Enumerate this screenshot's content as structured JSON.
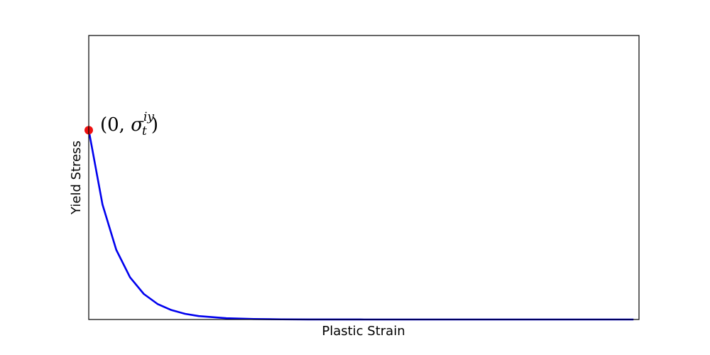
{
  "chart_data": {
    "type": "line",
    "title": "",
    "xlabel": "Plastic Strain",
    "ylabel": "Yield Stress",
    "xlim": [
      0,
      10
    ],
    "ylim": [
      0,
      1.5
    ],
    "xticks": [],
    "yticks": [],
    "grid": false,
    "series": [
      {
        "color": "#0000ee",
        "x": [
          0,
          0.25,
          0.5,
          0.75,
          1,
          1.25,
          1.5,
          1.75,
          2,
          2.5,
          3,
          3.5,
          4,
          5,
          6,
          7,
          8,
          9,
          9.9
        ],
        "y": [
          1.0,
          0.607,
          0.368,
          0.223,
          0.135,
          0.082,
          0.05,
          0.03,
          0.018,
          0.0067,
          0.0025,
          0.0009,
          0.0003,
          5e-05,
          0.0,
          0.0,
          0.0,
          0.0,
          0.0
        ]
      }
    ],
    "points": [
      {
        "x": 0,
        "y": 1.0,
        "color": "#ee1111"
      }
    ],
    "annotations": [
      {
        "x": 0,
        "y": 1.0,
        "open": "(0, ",
        "symbol": "σ",
        "superscript": "iy",
        "subscript": "t",
        "close": ")"
      }
    ]
  }
}
